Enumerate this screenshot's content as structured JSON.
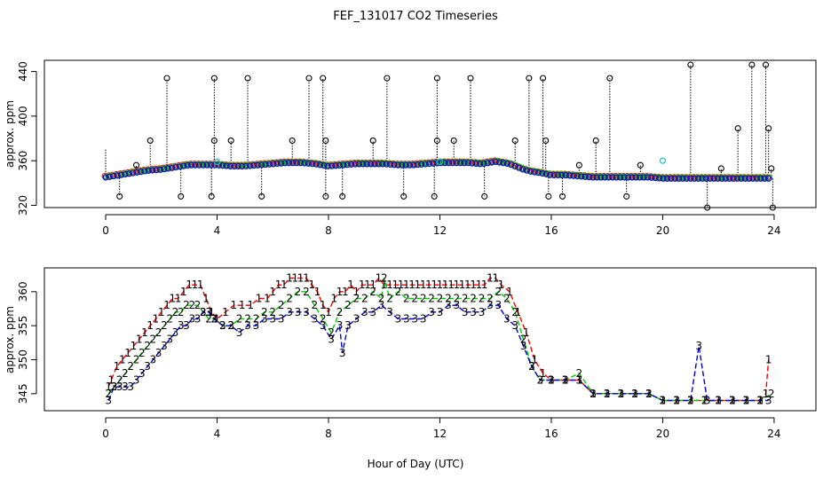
{
  "figure": {
    "title": "FEF_131017  CO2 Timeseries",
    "xlabel": "Hour of Day (UTC)"
  },
  "colors": {
    "series_1": "#ff0000",
    "series_2": "#00cc00",
    "series_3": "#0000cc",
    "cyan": "#00c8c8",
    "black": "#000000"
  },
  "chart_data": [
    {
      "type": "scatter",
      "title": "",
      "xlabel": "",
      "ylabel": "approx. ppm",
      "xlim": [
        -2.2,
        25.5
      ],
      "ylim": [
        318,
        450
      ],
      "xticks": [
        0,
        4,
        8,
        12,
        16,
        20,
        24
      ],
      "yticks": [
        320,
        360,
        400,
        440
      ],
      "baseline": {
        "x": [
          0,
          0.5,
          1,
          1.5,
          2,
          2.5,
          3,
          3.5,
          4,
          4.5,
          5,
          5.5,
          6,
          6.5,
          7,
          7.5,
          8,
          8.5,
          9,
          9.5,
          10,
          10.5,
          11,
          11.5,
          12,
          12.5,
          13,
          13.5,
          14,
          14.5,
          15,
          15.3,
          15.6,
          16,
          16.5,
          17,
          17.5,
          18,
          18.5,
          19,
          19.5,
          20,
          20.5,
          21,
          21.5,
          22,
          22.5,
          23,
          23.5,
          23.8
        ],
        "y": [
          345,
          347,
          349,
          351,
          352,
          354,
          356,
          356,
          356,
          355,
          355,
          356,
          357,
          358,
          358,
          357,
          355,
          356,
          357,
          357,
          357,
          356,
          356,
          357,
          358,
          358,
          358,
          357,
          359,
          357,
          352,
          350,
          349,
          347,
          347,
          346,
          345,
          345,
          345,
          345,
          345,
          344,
          344,
          344,
          344,
          344,
          344,
          344,
          344,
          344
        ]
      },
      "black_spikes": {
        "x": [
          0.5,
          1.1,
          1.6,
          2.2,
          2.7,
          3.8,
          3.9,
          3.9,
          4.5,
          5.1,
          5.6,
          6.7,
          7.3,
          7.8,
          7.9,
          7.9,
          8.5,
          9.6,
          10.1,
          10.7,
          11.8,
          11.9,
          11.9,
          12.5,
          13.1,
          13.6,
          14.7,
          15.2,
          15.7,
          15.8,
          15.9,
          16.4,
          17,
          17.6,
          18.1,
          18.7,
          19.2,
          21,
          21.6,
          22.1,
          22.7,
          23.2,
          23.7,
          23.8,
          23.9,
          23.95
        ],
        "y": [
          328,
          356,
          378,
          434,
          328,
          328,
          378,
          434,
          378,
          434,
          328,
          378,
          434,
          434,
          378,
          328,
          328,
          378,
          434,
          328,
          328,
          378,
          434,
          378,
          434,
          328,
          378,
          434,
          434,
          378,
          328,
          328,
          356,
          378,
          434,
          328,
          356,
          446,
          318,
          353,
          389,
          446,
          446,
          389,
          353,
          318
        ]
      },
      "cyan_points": {
        "x": [
          4.0,
          12.0,
          20.0
        ],
        "y": [
          359,
          359,
          360
        ]
      }
    },
    {
      "type": "line",
      "title": "",
      "xlabel": "Hour of Day (UTC)",
      "ylabel": "approx. ppm",
      "xlim": [
        -2.2,
        25.5
      ],
      "ylim": [
        342.5,
        363.5
      ],
      "xticks": [
        0,
        4,
        8,
        12,
        16,
        20,
        24
      ],
      "yticks": [
        345,
        350,
        355,
        360
      ],
      "series": [
        {
          "name": "1",
          "x": [
            0.1,
            0.2,
            0.4,
            0.6,
            0.8,
            1.0,
            1.2,
            1.4,
            1.6,
            1.8,
            2.0,
            2.2,
            2.4,
            2.6,
            2.8,
            3.0,
            3.2,
            3.4,
            3.6,
            3.8,
            4.0,
            4.3,
            4.6,
            4.9,
            5.2,
            5.5,
            5.8,
            6.0,
            6.2,
            6.4,
            6.6,
            6.8,
            7.0,
            7.2,
            7.4,
            7.6,
            7.8,
            8.0,
            8.2,
            8.4,
            8.6,
            8.8,
            9.0,
            9.2,
            9.4,
            9.6,
            9.8,
            10.0,
            10.2,
            10.4,
            10.6,
            10.8,
            11.0,
            11.2,
            11.4,
            11.6,
            11.8,
            12.0,
            12.2,
            12.4,
            12.6,
            12.8,
            13.0,
            13.2,
            13.4,
            13.6,
            13.8,
            14.0,
            14.2,
            14.5,
            14.8,
            15.1,
            15.4,
            15.7,
            16.0,
            16.5,
            17.0,
            17.5,
            18.0,
            18.5,
            19.0,
            19.5,
            20.0,
            20.5,
            21.0,
            21.5,
            22.0,
            22.5,
            23.0,
            23.5,
            23.7,
            23.8
          ],
          "y": [
            346,
            347,
            349,
            350,
            351,
            352,
            353,
            354,
            355,
            356,
            357,
            358,
            359,
            359,
            360,
            361,
            361,
            361,
            359,
            357,
            356,
            357,
            358,
            358,
            358,
            359,
            359,
            360,
            361,
            361,
            362,
            362,
            362,
            362,
            361,
            360,
            358,
            357,
            359,
            360,
            360,
            361,
            360,
            361,
            361,
            361,
            362,
            361,
            361,
            361,
            361,
            361,
            361,
            361,
            361,
            361,
            361,
            361,
            361,
            361,
            361,
            361,
            361,
            361,
            361,
            361,
            362,
            362,
            361,
            360,
            357,
            354,
            350,
            348,
            347,
            347,
            347,
            345,
            345,
            345,
            345,
            345,
            344,
            344,
            344,
            344,
            344,
            344,
            344,
            344,
            345,
            350
          ]
        },
        {
          "name": "2",
          "x": [
            0.1,
            0.3,
            0.5,
            0.7,
            0.9,
            1.1,
            1.3,
            1.5,
            1.7,
            1.9,
            2.1,
            2.3,
            2.5,
            2.7,
            2.9,
            3.1,
            3.3,
            3.5,
            3.7,
            3.9,
            4.2,
            4.5,
            4.8,
            5.1,
            5.4,
            5.7,
            6.0,
            6.3,
            6.6,
            6.9,
            7.2,
            7.5,
            7.8,
            8.1,
            8.4,
            8.7,
            9.0,
            9.3,
            9.6,
            9.9,
            10.0,
            10.2,
            10.5,
            10.8,
            11.1,
            11.4,
            11.7,
            12.0,
            12.3,
            12.6,
            12.9,
            13.2,
            13.5,
            13.8,
            14.1,
            14.4,
            14.7,
            15.0,
            15.3,
            15.6,
            16.0,
            16.5,
            17.0,
            17.5,
            18.0,
            18.5,
            19.0,
            19.5,
            20.0,
            20.5,
            21.0,
            21.5,
            22.0,
            22.5,
            23.0,
            23.5,
            23.9
          ],
          "y": [
            345,
            346,
            347,
            348,
            349,
            350,
            351,
            352,
            353,
            354,
            355,
            356,
            357,
            357,
            358,
            358,
            358,
            357,
            356,
            356,
            355,
            355,
            356,
            356,
            356,
            357,
            357,
            358,
            359,
            360,
            360,
            358,
            356,
            354,
            357,
            358,
            359,
            359,
            360,
            359,
            362,
            359,
            360,
            359,
            359,
            359,
            359,
            359,
            359,
            359,
            359,
            359,
            359,
            359,
            360,
            359,
            357,
            353,
            349,
            347,
            347,
            347,
            348,
            345,
            345,
            345,
            345,
            345,
            344,
            344,
            344,
            344,
            344,
            344,
            344,
            344,
            345
          ]
        },
        {
          "name": "3",
          "x": [
            0.1,
            0.3,
            0.5,
            0.7,
            0.9,
            1.1,
            1.3,
            1.5,
            1.7,
            1.9,
            2.1,
            2.3,
            2.5,
            2.7,
            2.9,
            3.1,
            3.3,
            3.5,
            3.7,
            3.9,
            4.2,
            4.5,
            4.8,
            5.1,
            5.4,
            5.7,
            6.0,
            6.3,
            6.6,
            6.9,
            7.2,
            7.5,
            7.8,
            8.1,
            8.4,
            8.5,
            8.7,
            9.0,
            9.3,
            9.6,
            9.9,
            10.2,
            10.5,
            10.8,
            11.1,
            11.4,
            11.7,
            12.0,
            12.3,
            12.6,
            12.9,
            13.2,
            13.5,
            13.8,
            14.1,
            14.4,
            14.7,
            15.0,
            15.3,
            15.6,
            16.0,
            16.5,
            17.0,
            17.5,
            18.0,
            18.5,
            19.0,
            19.5,
            20.0,
            20.5,
            21.0,
            21.3,
            21.6,
            22.0,
            22.5,
            23.0,
            23.5,
            23.8
          ],
          "y": [
            344,
            346,
            346,
            346,
            346,
            347,
            348,
            349,
            350,
            351,
            352,
            353,
            354,
            355,
            355,
            356,
            356,
            357,
            357,
            356,
            355,
            355,
            354,
            355,
            355,
            356,
            356,
            356,
            357,
            357,
            357,
            356,
            355,
            353,
            355,
            351,
            355,
            356,
            357,
            357,
            358,
            357,
            356,
            356,
            356,
            356,
            357,
            357,
            358,
            358,
            357,
            357,
            357,
            358,
            358,
            356,
            355,
            352,
            349,
            347,
            347,
            347,
            347,
            345,
            345,
            345,
            345,
            345,
            344,
            344,
            344,
            352,
            344,
            344,
            344,
            344,
            344,
            344
          ]
        }
      ]
    }
  ]
}
